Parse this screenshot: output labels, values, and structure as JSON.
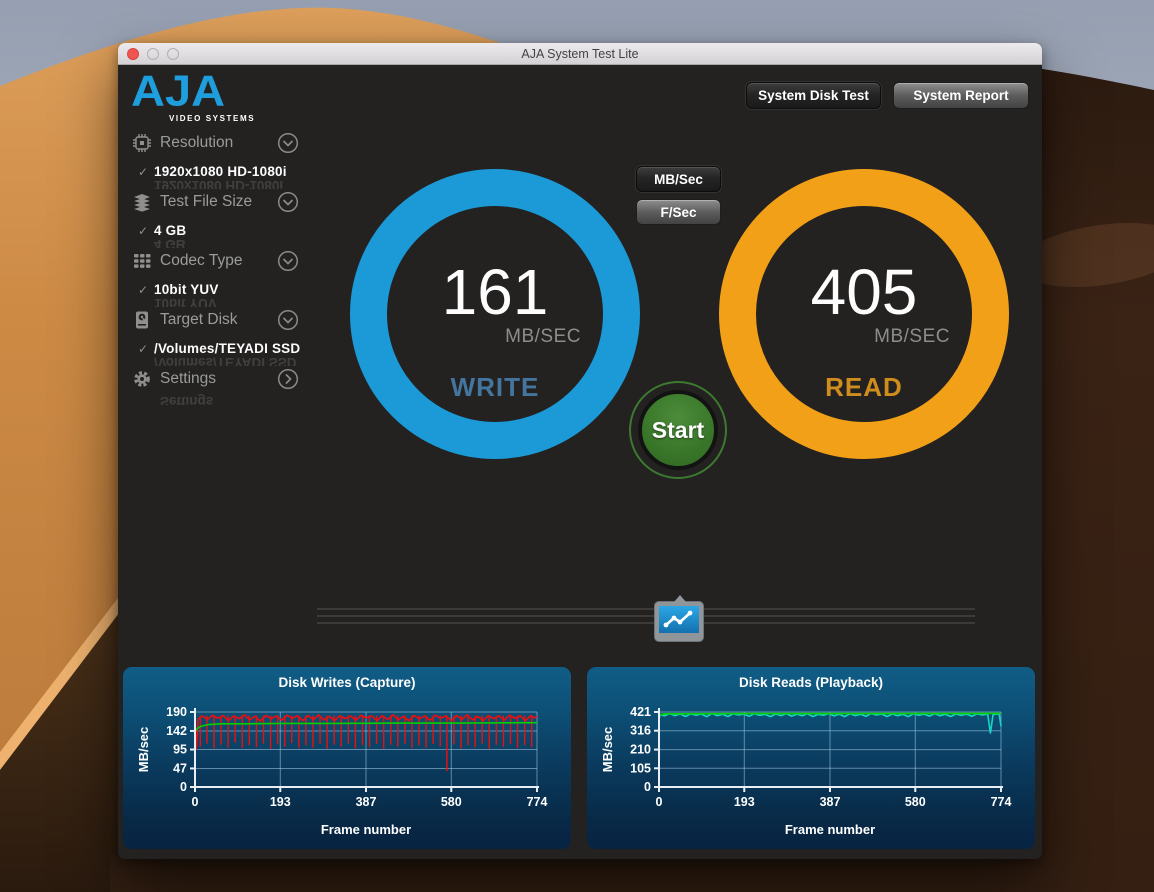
{
  "window": {
    "title": "AJA System Test Lite"
  },
  "header": {
    "logo": {
      "text": "AJA",
      "subtext": "VIDEO SYSTEMS"
    },
    "disk_test_label": "System Disk Test",
    "report_label": "System Report"
  },
  "sidebar": {
    "check": "✓",
    "items": [
      {
        "label": "Resolution",
        "value": "1920x1080 HD-1080i",
        "icon": "chip-icon",
        "chevron": "down"
      },
      {
        "label": "Test File Size",
        "value": "4 GB",
        "icon": "layers-icon",
        "chevron": "down"
      },
      {
        "label": "Codec Type",
        "value": "10bit YUV",
        "icon": "grid-icon",
        "chevron": "down"
      },
      {
        "label": "Target Disk",
        "value": "/Volumes/TEYADI SSD",
        "icon": "disk-icon",
        "chevron": "down"
      },
      {
        "label": "Settings",
        "value": "",
        "icon": "gear-icon",
        "chevron": "right"
      }
    ]
  },
  "unit_toggle": {
    "mbsec": "MB/Sec",
    "fsec": "F/Sec"
  },
  "gauges": {
    "write": {
      "value": "161",
      "unit": "MB/SEC",
      "label": "WRITE",
      "ring_color": "#1b9ad7",
      "label_color": "#44759e"
    },
    "read": {
      "value": "405",
      "unit": "MB/SEC",
      "label": "READ",
      "ring_color": "#f2a017",
      "label_color": "#ce8d1d"
    }
  },
  "start": {
    "label": "Start",
    "color": "#387428"
  },
  "chart_data": [
    {
      "type": "line",
      "title": "Disk Writes (Capture)",
      "xlabel": "Frame number",
      "ylabel": "MB/sec",
      "xlim": [
        0,
        774
      ],
      "ylim": [
        0,
        190
      ],
      "xticks": [
        0,
        193,
        387,
        580,
        774
      ],
      "yticks": [
        190,
        142,
        95,
        47,
        0
      ],
      "grid": true,
      "legend": false,
      "series": [
        {
          "name": "write-rate",
          "color": "#f20d0d",
          "spike_top": 181,
          "points": [
            [
              0,
              150
            ],
            [
              3,
              96
            ],
            [
              7,
              172
            ],
            [
              16,
              180
            ],
            [
              28,
              171
            ],
            [
              40,
              182
            ],
            [
              52,
              174
            ],
            [
              64,
              181
            ],
            [
              76,
              168
            ],
            [
              88,
              180
            ],
            [
              100,
              173
            ],
            [
              112,
              183
            ],
            [
              124,
              170
            ],
            [
              136,
              179
            ],
            [
              148,
              167
            ],
            [
              160,
              181
            ],
            [
              172,
              173
            ],
            [
              184,
              180
            ],
            [
              196,
              169
            ],
            [
              208,
              182
            ],
            [
              220,
              174
            ],
            [
              232,
              180
            ],
            [
              244,
              168
            ],
            [
              256,
              181
            ],
            [
              268,
              171
            ],
            [
              280,
              183
            ],
            [
              292,
              170
            ],
            [
              304,
              179
            ],
            [
              316,
              168
            ],
            [
              328,
              181
            ],
            [
              340,
              173
            ],
            [
              352,
              180
            ],
            [
              364,
              169
            ],
            [
              376,
              182
            ],
            [
              388,
              175
            ],
            [
              400,
              180
            ],
            [
              412,
              168
            ],
            [
              424,
              181
            ],
            [
              436,
              171
            ],
            [
              448,
              183
            ],
            [
              460,
              170
            ],
            [
              472,
              179
            ],
            [
              484,
              168
            ],
            [
              496,
              181
            ],
            [
              508,
              173
            ],
            [
              520,
              180
            ],
            [
              532,
              169
            ],
            [
              544,
              182
            ],
            [
              556,
              174
            ],
            [
              568,
              180
            ],
            [
              580,
              168
            ],
            [
              592,
              181
            ],
            [
              604,
              171
            ],
            [
              616,
              183
            ],
            [
              628,
              170
            ],
            [
              640,
              179
            ],
            [
              652,
              168
            ],
            [
              664,
              181
            ],
            [
              676,
              173
            ],
            [
              688,
              180
            ],
            [
              700,
              169
            ],
            [
              712,
              182
            ],
            [
              724,
              174
            ],
            [
              736,
              180
            ],
            [
              748,
              168
            ],
            [
              760,
              181
            ],
            [
              768,
              175
            ],
            [
              774,
              179
            ]
          ],
          "spikes": [
            [
              12,
              102
            ],
            [
              27,
              110
            ],
            [
              43,
              98
            ],
            [
              59,
              107
            ],
            [
              75,
              100
            ],
            [
              91,
              112
            ],
            [
              107,
              99
            ],
            [
              123,
              106
            ],
            [
              139,
              101
            ],
            [
              155,
              110
            ],
            [
              171,
              97
            ],
            [
              187,
              108
            ],
            [
              203,
              102
            ],
            [
              219,
              111
            ],
            [
              235,
              99
            ],
            [
              251,
              106
            ],
            [
              267,
              100
            ],
            [
              283,
              109
            ],
            [
              299,
              97
            ],
            [
              315,
              107
            ],
            [
              331,
              102
            ],
            [
              347,
              110
            ],
            [
              363,
              98
            ],
            [
              379,
              106
            ],
            [
              395,
              101
            ],
            [
              411,
              109
            ],
            [
              427,
              97
            ],
            [
              443,
              107
            ],
            [
              459,
              102
            ],
            [
              475,
              110
            ],
            [
              491,
              99
            ],
            [
              507,
              106
            ],
            [
              523,
              100
            ],
            [
              539,
              109
            ],
            [
              555,
              103
            ],
            [
              570,
              40
            ],
            [
              586,
              108
            ],
            [
              602,
              98
            ],
            [
              618,
              106
            ],
            [
              634,
              101
            ],
            [
              650,
              110
            ],
            [
              666,
              97
            ],
            [
              682,
              107
            ],
            [
              698,
              102
            ],
            [
              714,
              109
            ],
            [
              730,
              99
            ],
            [
              746,
              106
            ],
            [
              762,
              101
            ]
          ]
        },
        {
          "name": "average",
          "color": "#00cf00",
          "points": [
            [
              0,
              141
            ],
            [
              6,
              149
            ],
            [
              14,
              154
            ],
            [
              30,
              158
            ],
            [
              60,
              160
            ],
            [
              120,
              160
            ],
            [
              200,
              161
            ],
            [
              300,
              161
            ],
            [
              450,
              162
            ],
            [
              600,
              162
            ],
            [
              774,
              163
            ]
          ]
        }
      ]
    },
    {
      "type": "line",
      "title": "Disk Reads (Playback)",
      "xlabel": "Frame number",
      "ylabel": "MB/sec",
      "xlim": [
        0,
        774
      ],
      "ylim": [
        0,
        421
      ],
      "xticks": [
        0,
        193,
        387,
        580,
        774
      ],
      "yticks": [
        421,
        316,
        210,
        105,
        0
      ],
      "grid": true,
      "legend": false,
      "series": [
        {
          "name": "read-rate",
          "color": "#17d6c4",
          "points": [
            [
              0,
              382
            ],
            [
              3,
              408
            ],
            [
              12,
              399
            ],
            [
              24,
              412
            ],
            [
              36,
              401
            ],
            [
              48,
              410
            ],
            [
              60,
              396
            ],
            [
              72,
              411
            ],
            [
              84,
              403
            ],
            [
              96,
              409
            ],
            [
              108,
              395
            ],
            [
              120,
              412
            ],
            [
              132,
              401
            ],
            [
              144,
              408
            ],
            [
              156,
              396
            ],
            [
              168,
              411
            ],
            [
              180,
              404
            ],
            [
              192,
              409
            ],
            [
              204,
              397
            ],
            [
              216,
              412
            ],
            [
              228,
              402
            ],
            [
              240,
              408
            ],
            [
              252,
              395
            ],
            [
              264,
              410
            ],
            [
              276,
              401
            ],
            [
              288,
              412
            ],
            [
              300,
              398
            ],
            [
              312,
              409
            ],
            [
              324,
              400
            ],
            [
              336,
              411
            ],
            [
              348,
              396
            ],
            [
              360,
              408
            ],
            [
              372,
              403
            ],
            [
              384,
              412
            ],
            [
              396,
              399
            ],
            [
              408,
              409
            ],
            [
              420,
              395
            ],
            [
              432,
              411
            ],
            [
              444,
              401
            ],
            [
              456,
              408
            ],
            [
              468,
              397
            ],
            [
              480,
              412
            ],
            [
              492,
              404
            ],
            [
              504,
              409
            ],
            [
              516,
              396
            ],
            [
              528,
              410
            ],
            [
              540,
              400
            ],
            [
              552,
              408
            ],
            [
              564,
              395
            ],
            [
              576,
              411
            ],
            [
              588,
              403
            ],
            [
              600,
              409
            ],
            [
              612,
              398
            ],
            [
              624,
              412
            ],
            [
              636,
              400
            ],
            [
              648,
              408
            ],
            [
              660,
              396
            ],
            [
              672,
              410
            ],
            [
              684,
              402
            ],
            [
              696,
              409
            ],
            [
              708,
              397
            ],
            [
              720,
              411
            ],
            [
              732,
              404
            ],
            [
              744,
              409
            ],
            [
              750,
              303
            ],
            [
              756,
              406
            ],
            [
              764,
              410
            ],
            [
              770,
              408
            ],
            [
              774,
              341
            ]
          ]
        },
        {
          "name": "average",
          "color": "#00cf00",
          "points": [
            [
              0,
              406
            ],
            [
              15,
              411
            ],
            [
              200,
              412
            ],
            [
              500,
              412
            ],
            [
              774,
              413
            ]
          ]
        }
      ]
    }
  ]
}
